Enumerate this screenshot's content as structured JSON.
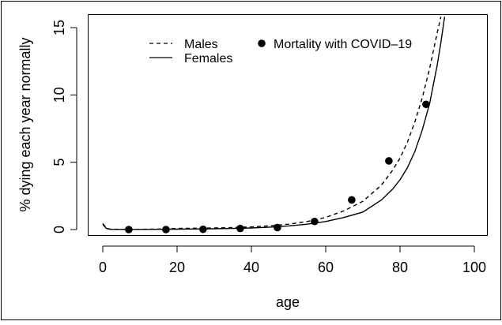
{
  "chart_data": {
    "type": "line",
    "title": "",
    "xlabel": "age",
    "ylabel": "% dying each year normally",
    "xlim": [
      0,
      100
    ],
    "ylim": [
      0,
      15
    ],
    "xticks": [
      0,
      20,
      40,
      60,
      80,
      100
    ],
    "yticks": [
      0,
      5,
      10,
      15
    ],
    "grid": false,
    "legend_position": "top",
    "series": [
      {
        "name": "Males",
        "kind": "line",
        "linestyle": "dashed",
        "color": "#000000",
        "x": [
          0,
          1,
          2,
          5,
          10,
          15,
          20,
          25,
          30,
          35,
          40,
          45,
          50,
          55,
          60,
          65,
          70,
          75,
          78,
          80,
          82,
          84,
          86,
          88,
          89,
          90,
          91
        ],
        "y": [
          0.45,
          0.1,
          0.03,
          0.02,
          0.02,
          0.04,
          0.08,
          0.1,
          0.12,
          0.15,
          0.2,
          0.28,
          0.4,
          0.6,
          0.9,
          1.4,
          2.1,
          3.3,
          4.4,
          5.3,
          6.5,
          8.0,
          9.8,
          12.0,
          13.3,
          14.6,
          15.8
        ]
      },
      {
        "name": "Females",
        "kind": "line",
        "linestyle": "solid",
        "color": "#000000",
        "x": [
          0,
          1,
          2,
          5,
          10,
          15,
          20,
          25,
          30,
          35,
          40,
          45,
          50,
          55,
          60,
          65,
          70,
          75,
          78,
          80,
          82,
          84,
          86,
          88,
          90,
          91,
          92
        ],
        "y": [
          0.38,
          0.08,
          0.02,
          0.01,
          0.01,
          0.02,
          0.03,
          0.04,
          0.06,
          0.08,
          0.12,
          0.18,
          0.27,
          0.4,
          0.6,
          0.9,
          1.3,
          2.2,
          3.0,
          3.7,
          4.6,
          5.8,
          7.4,
          9.4,
          12.2,
          13.9,
          15.8
        ]
      },
      {
        "name": "Mortality with COVID–19",
        "kind": "points",
        "color": "#000000",
        "x": [
          7,
          17,
          27,
          37,
          47,
          57,
          67,
          77,
          87
        ],
        "y": [
          0.0,
          0.0,
          0.02,
          0.08,
          0.15,
          0.6,
          2.2,
          5.1,
          9.3
        ]
      }
    ]
  }
}
